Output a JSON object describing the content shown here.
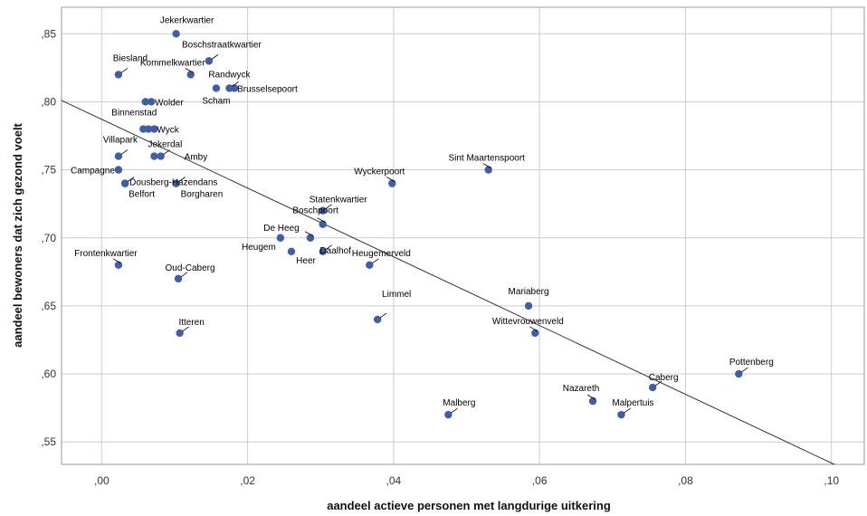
{
  "chart_data": {
    "type": "scatter",
    "xlabel": "aandeel actieve personen met langdurige uitkering",
    "ylabel": "aandeel bewoners dat zich gezond voelt",
    "xlim": [
      -0.0055,
      0.1045
    ],
    "ylim": [
      0.5335,
      0.8695
    ],
    "x_ticks": [
      0.0,
      0.02,
      0.04,
      0.06,
      0.08,
      0.1
    ],
    "x_tick_labels": [
      ",00",
      ",02",
      ",04",
      ",06",
      ",08",
      ",10"
    ],
    "y_ticks": [
      0.55,
      0.6,
      0.65,
      0.7,
      0.75,
      0.8,
      0.85
    ],
    "y_tick_labels": [
      ",55",
      ",60",
      ",65",
      ",70",
      ",75",
      ",80",
      ",85"
    ],
    "grid": true,
    "colors": {
      "point": "#3f5ea8",
      "grid": "#cccccc",
      "fit_line": "#333333",
      "frame": "#999999"
    },
    "fit_line": {
      "x": [
        -0.0055,
        0.1004
      ],
      "y": [
        0.801,
        0.5335
      ]
    },
    "points": [
      {
        "label": "Jekerkwartier",
        "x": 0.0102,
        "y": 0.85
      },
      {
        "label": "Boschstraatkwartier",
        "x": 0.0147,
        "y": 0.83
      },
      {
        "label": "Biesland",
        "x": 0.0023,
        "y": 0.82
      },
      {
        "label": "Kommelkwartier",
        "x": 0.0122,
        "y": 0.82
      },
      {
        "label": "Randwyck",
        "x": 0.0175,
        "y": 0.81
      },
      {
        "label": "Brusselsepoort",
        "x": 0.0182,
        "y": 0.81
      },
      {
        "label": "Scham",
        "x": 0.0157,
        "y": 0.81
      },
      {
        "label": "Wolder",
        "x": 0.0068,
        "y": 0.8
      },
      {
        "label": "",
        "x": 0.006,
        "y": 0.8
      },
      {
        "label": "Binnenstad",
        "x": 0.0057,
        "y": 0.78
      },
      {
        "label": "Wyck",
        "x": 0.0072,
        "y": 0.78
      },
      {
        "label": "",
        "x": 0.0064,
        "y": 0.78
      },
      {
        "label": "Villapark",
        "x": 0.0023,
        "y": 0.76
      },
      {
        "label": "Jekerdal",
        "x": 0.0072,
        "y": 0.76
      },
      {
        "label": "Amby",
        "x": 0.0081,
        "y": 0.76
      },
      {
        "label": "Campagne",
        "x": 0.0023,
        "y": 0.75
      },
      {
        "label": "Dousberg-Hazendans",
        "x": 0.0032,
        "y": 0.74
      },
      {
        "label": "Belfort",
        "x": 0.0032,
        "y": 0.74
      },
      {
        "label": "Borgharen",
        "x": 0.0102,
        "y": 0.74
      },
      {
        "label": "Wyckerpoort",
        "x": 0.0398,
        "y": 0.74
      },
      {
        "label": "Sint Maartenspoort",
        "x": 0.053,
        "y": 0.75
      },
      {
        "label": "Statenkwartier",
        "x": 0.0303,
        "y": 0.72
      },
      {
        "label": "Boschpoort",
        "x": 0.0303,
        "y": 0.71
      },
      {
        "label": "De Heeg",
        "x": 0.0286,
        "y": 0.7
      },
      {
        "label": "Heugem",
        "x": 0.0245,
        "y": 0.7
      },
      {
        "label": "Daalhof",
        "x": 0.0303,
        "y": 0.69
      },
      {
        "label": "Heer",
        "x": 0.026,
        "y": 0.69
      },
      {
        "label": "Heugemerveld",
        "x": 0.0367,
        "y": 0.68
      },
      {
        "label": "Frontenkwartier",
        "x": 0.0023,
        "y": 0.68
      },
      {
        "label": "Oud-Caberg",
        "x": 0.0105,
        "y": 0.67
      },
      {
        "label": "Itteren",
        "x": 0.0107,
        "y": 0.63
      },
      {
        "label": "Limmel",
        "x": 0.0378,
        "y": 0.64
      },
      {
        "label": "Mariaberg",
        "x": 0.0585,
        "y": 0.65
      },
      {
        "label": "Wittevrouwenveld",
        "x": 0.0594,
        "y": 0.63
      },
      {
        "label": "Pottenberg",
        "x": 0.0873,
        "y": 0.6
      },
      {
        "label": "Caberg",
        "x": 0.0755,
        "y": 0.59
      },
      {
        "label": "Nazareth",
        "x": 0.0673,
        "y": 0.58
      },
      {
        "label": "Malpertuis",
        "x": 0.0712,
        "y": 0.57
      },
      {
        "label": "Malberg",
        "x": 0.0475,
        "y": 0.57
      }
    ]
  }
}
